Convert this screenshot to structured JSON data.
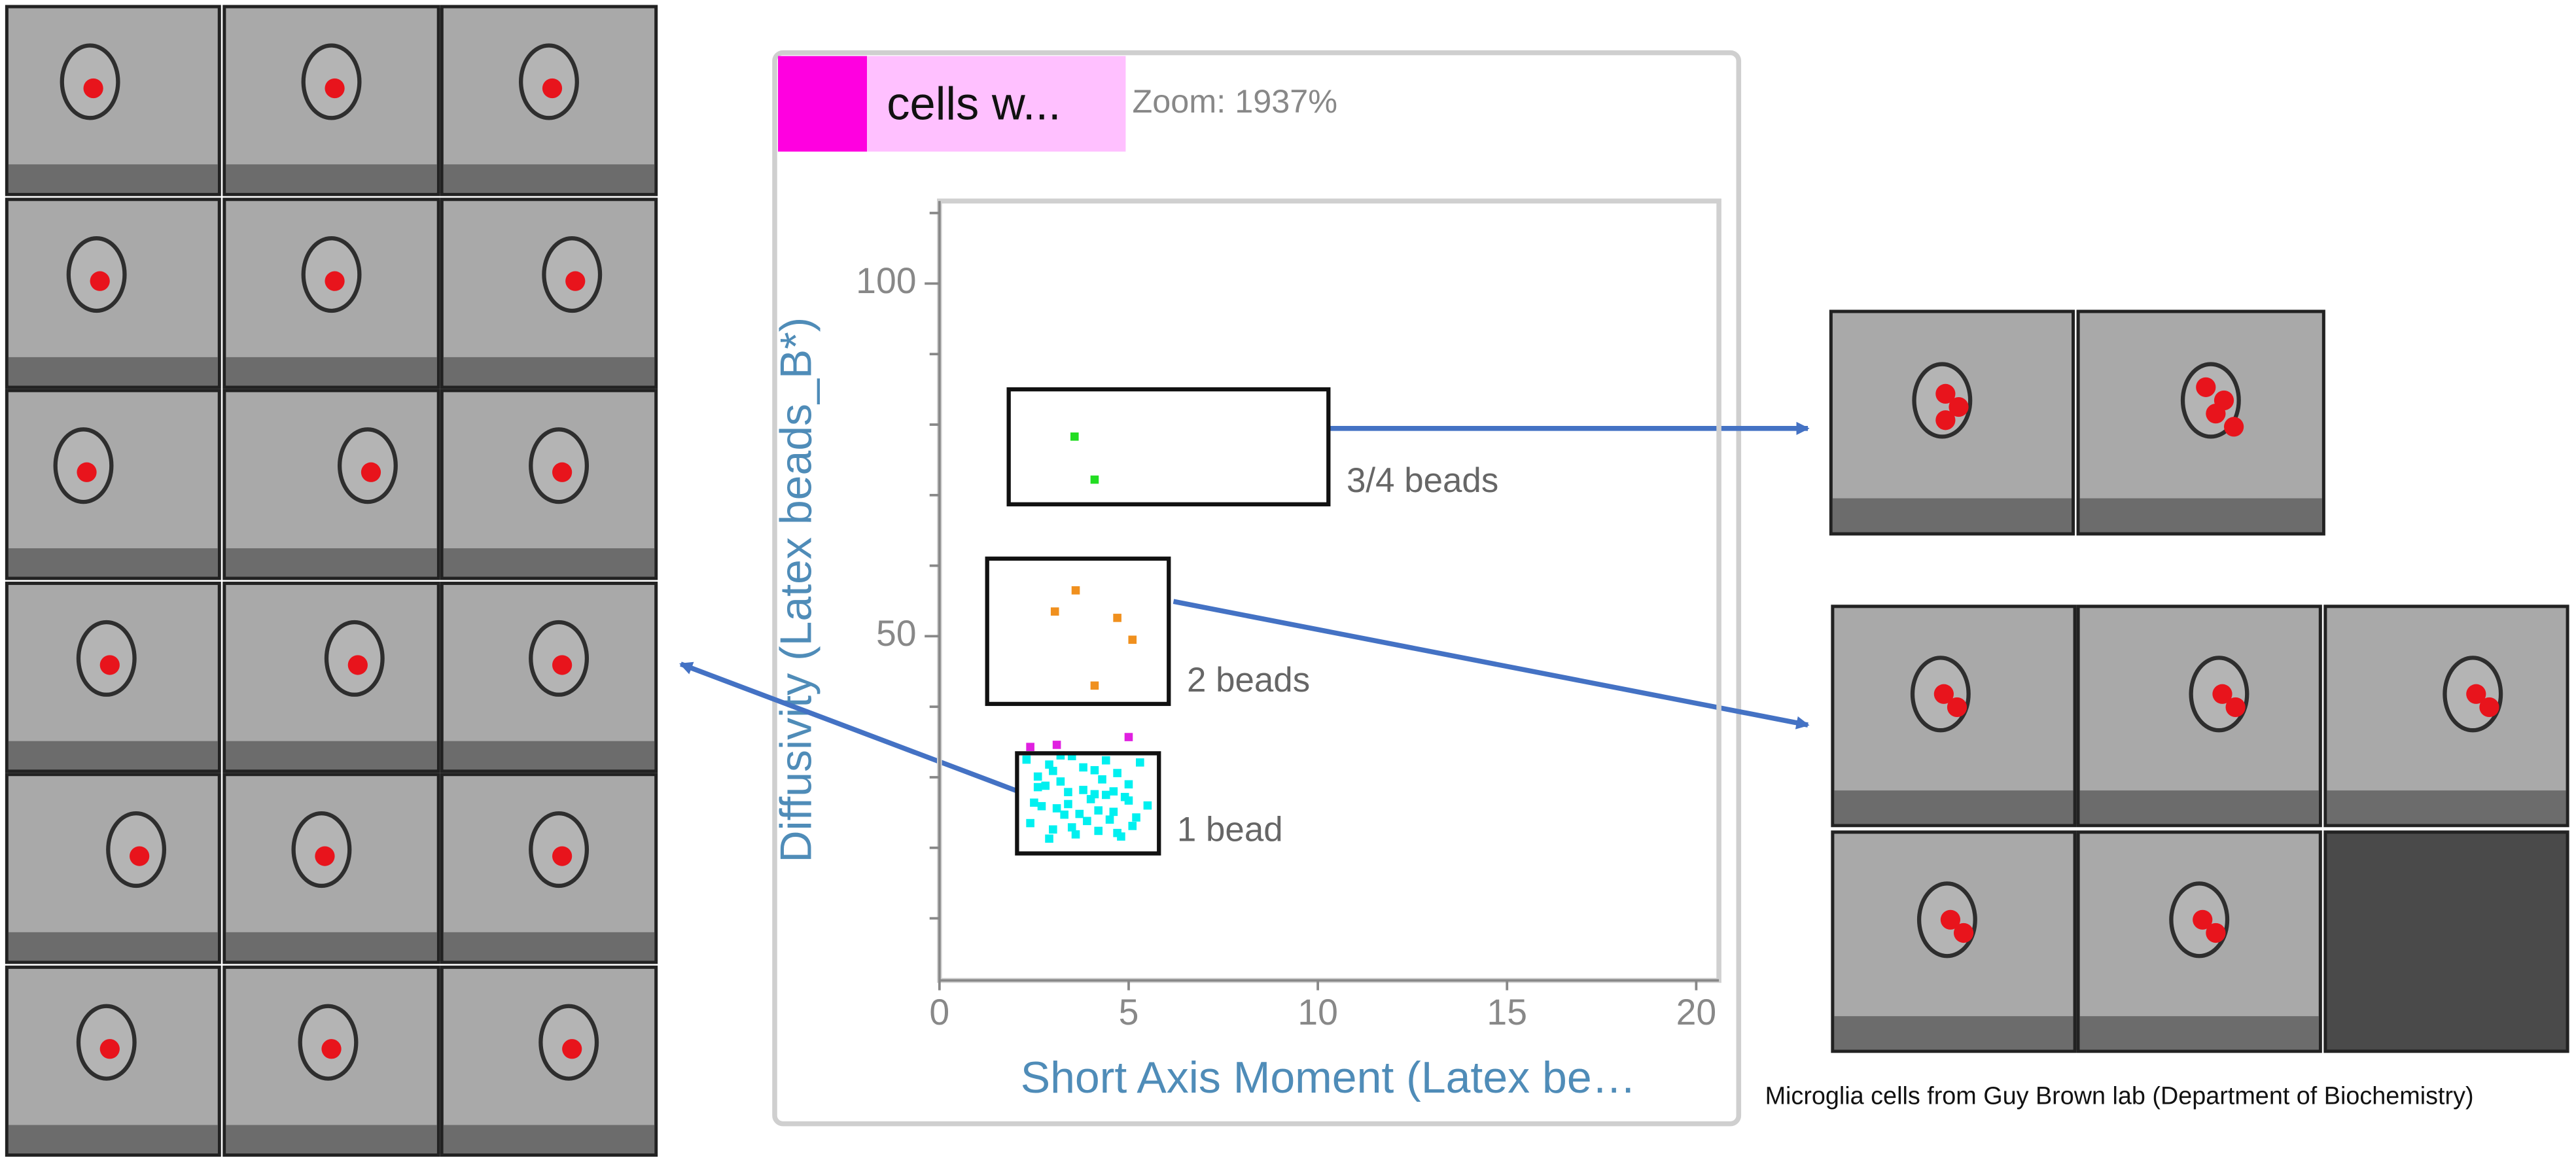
{
  "chart_data": {
    "type": "scatter",
    "header": {
      "gate_name": "cells w...",
      "zoom": "Zoom: 1937%"
    },
    "xlabel": "Short Axis Moment (Latex be…",
    "ylabel": "Diffusivity (Latex beads_B*)",
    "xlim": [
      0,
      20.6
    ],
    "ylim": [
      1.2,
      111.7
    ],
    "xticks": [
      0,
      5,
      10,
      15,
      20
    ],
    "yticks": [
      50,
      100
    ],
    "yminorticks": [
      10,
      20,
      30,
      40,
      60,
      70,
      80,
      90,
      110
    ],
    "series": [
      {
        "color": "#22dd22",
        "x": [
          3.57,
          4.1
        ],
        "values": [
          78.3,
          72.2
        ]
      },
      {
        "color": "#f0901e",
        "x": [
          3.6,
          3.05,
          4.7,
          5.1,
          4.1
        ],
        "values": [
          56.5,
          53.5,
          52.6,
          49.5,
          43.0
        ]
      },
      {
        "color": "#e020e0",
        "x": [
          2.4,
          5.0,
          3.1
        ],
        "values": [
          34.3,
          35.7,
          34.6
        ]
      },
      {
        "color": "#00f0f0",
        "x": [
          2.3,
          2.6,
          2.9,
          3.2,
          3.5,
          3.8,
          4.1,
          4.4,
          4.7,
          5.0,
          5.3,
          2.5,
          2.8,
          3.1,
          3.4,
          3.7,
          4.0,
          4.3,
          4.6,
          4.9,
          5.2,
          5.5,
          2.4,
          2.7,
          3.0,
          3.3,
          3.6,
          3.9,
          4.2,
          4.5,
          4.8,
          5.1,
          2.6,
          3.0,
          3.4,
          3.8,
          4.2,
          4.6,
          5.0,
          2.9,
          3.5,
          4.1,
          4.7,
          3.2,
          4.4
        ],
        "values": [
          32.5,
          30.1,
          31.8,
          29.4,
          33.0,
          28.2,
          31.0,
          27.5,
          30.6,
          29.0,
          32.1,
          26.4,
          28.8,
          25.6,
          27.9,
          24.8,
          26.9,
          29.7,
          25.1,
          27.2,
          24.3,
          26.0,
          23.5,
          25.9,
          22.6,
          24.7,
          21.9,
          23.8,
          22.4,
          24.0,
          21.6,
          23.1,
          28.6,
          30.9,
          26.2,
          31.4,
          25.3,
          28.0,
          26.7,
          21.3,
          22.9,
          27.6,
          22.1,
          33.1,
          32.4
        ]
      }
    ],
    "gates": [
      {
        "label": "3/4 beads",
        "x": [
          1.83,
          10.28
        ],
        "y": [
          68.7,
          85.0
        ]
      },
      {
        "label": "2 beads",
        "x": [
          1.26,
          6.06
        ],
        "y": [
          40.4,
          61.0
        ]
      },
      {
        "label": "1 bead",
        "x": [
          2.05,
          5.8
        ],
        "y": [
          19.2,
          33.4
        ]
      }
    ]
  },
  "caption": "Microglia cells from Guy Brown lab (Department of Biochemistry)"
}
